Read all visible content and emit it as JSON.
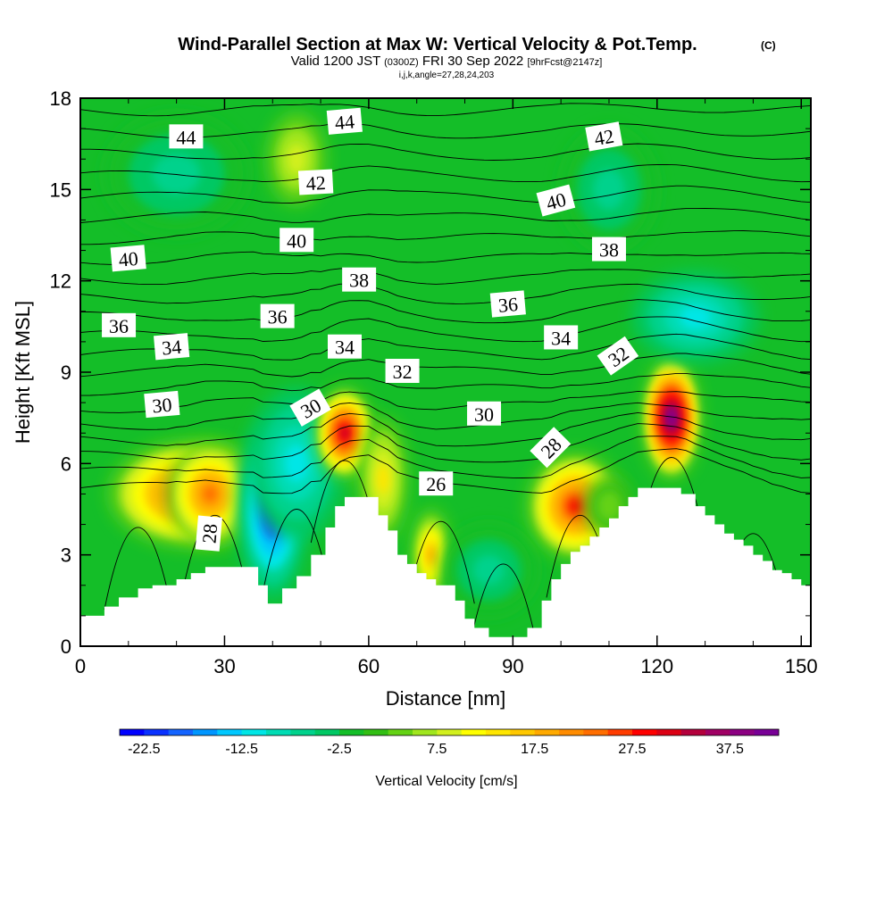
{
  "chart_data": {
    "type": "heatmap",
    "title": "Wind-Parallel Section at Max W: Vertical Velocity & Pot.Temp.",
    "title_suffix": "(C)",
    "subtitle_parts": {
      "valid": "Valid 1200 JST",
      "utc": "(0300Z)",
      "date": "FRI 30 Sep 2022",
      "forecast": "[9hrFcst@2147z]"
    },
    "subtitle2": "i,j,k,angle=27,28,24,203",
    "xlabel": "Distance [nm]",
    "ylabel": "Height [Kft MSL]",
    "xlim": [
      0,
      152
    ],
    "ylim": [
      0,
      18
    ],
    "x_ticks": [
      "0",
      "30",
      "60",
      "90",
      "120",
      "150"
    ],
    "y_ticks": [
      "0",
      "3",
      "6",
      "9",
      "12",
      "15",
      "18"
    ],
    "colorbar": {
      "label": "Vertical Velocity [cm/s]",
      "tick_labels": [
        "-22.5",
        "-12.5",
        "-2.5",
        "7.5",
        "17.5",
        "27.5",
        "37.5"
      ],
      "colors": [
        "#0000ff",
        "#0a32ff",
        "#1464ff",
        "#0096ff",
        "#00c8ff",
        "#00e6e6",
        "#00dcb4",
        "#00d28c",
        "#00c864",
        "#14be28",
        "#32be14",
        "#64d214",
        "#a0e61e",
        "#d2f01e",
        "#ffff00",
        "#ffe600",
        "#ffc800",
        "#ffaa00",
        "#ff8c00",
        "#ff6e00",
        "#ff3c00",
        "#ff0000",
        "#dc0014",
        "#b4003c",
        "#a00064",
        "#8c0082",
        "#780096"
      ]
    },
    "terrain": {
      "x": [
        0,
        3,
        5,
        8,
        12,
        15,
        20,
        23,
        26,
        30,
        35,
        37,
        39,
        42,
        45,
        48,
        51,
        53,
        55,
        57,
        60,
        62,
        64,
        66,
        68,
        70,
        72,
        74,
        76,
        78,
        80,
        82,
        85,
        88,
        90,
        93,
        96,
        98,
        100,
        102,
        104,
        106,
        108,
        110,
        112,
        114,
        116,
        118,
        120,
        122,
        125,
        128,
        130,
        132,
        134,
        136,
        138,
        140,
        142,
        144,
        146,
        148,
        150,
        152
      ],
      "y": [
        1.0,
        1.0,
        1.3,
        1.6,
        1.9,
        2.0,
        2.2,
        2.4,
        2.6,
        2.6,
        2.6,
        2.0,
        1.4,
        1.9,
        2.3,
        3.0,
        3.9,
        4.6,
        4.9,
        4.9,
        4.9,
        4.3,
        3.8,
        3.0,
        2.7,
        2.4,
        2.2,
        2.0,
        2.0,
        1.5,
        0.9,
        0.6,
        0.3,
        0.3,
        0.3,
        0.6,
        1.5,
        2.2,
        2.7,
        3.1,
        3.3,
        3.6,
        3.9,
        4.2,
        4.6,
        4.9,
        5.2,
        5.2,
        5.2,
        5.2,
        5.0,
        4.6,
        4.3,
        4.0,
        3.7,
        3.5,
        3.3,
        3.0,
        2.8,
        2.5,
        2.4,
        2.2,
        2.0,
        2.0
      ]
    },
    "w_features": [
      {
        "x": 23,
        "y": 5.0,
        "w": 34,
        "h": 3.5,
        "value": 27.5
      },
      {
        "x": 27,
        "y": 5.0,
        "w": 18,
        "h": 3.4,
        "value": 22.5
      },
      {
        "x": 40,
        "y": 4.5,
        "w": 15,
        "h": 6.0,
        "value": -22.5
      },
      {
        "x": 45,
        "y": 6.0,
        "w": 20,
        "h": 5.0,
        "value": -12.5
      },
      {
        "x": 55,
        "y": 7.0,
        "w": 12,
        "h": 3.0,
        "value": 32.5
      },
      {
        "x": 63,
        "y": 5.5,
        "w": 10,
        "h": 4.0,
        "value": 12.5
      },
      {
        "x": 73,
        "y": 3.0,
        "w": 8,
        "h": 3.0,
        "value": 17.5
      },
      {
        "x": 85,
        "y": 2.5,
        "w": 20,
        "h": 3.0,
        "value": -7.5
      },
      {
        "x": 103,
        "y": 4.6,
        "w": 20,
        "h": 3.5,
        "value": 27.5
      },
      {
        "x": 110,
        "y": 4.6,
        "w": 10,
        "h": 2.0,
        "value": 2.5
      },
      {
        "x": 123,
        "y": 7.5,
        "w": 12,
        "h": 4.0,
        "value": 42.5
      },
      {
        "x": 128,
        "y": 10.8,
        "w": 26,
        "h": 3.0,
        "value": -12.5
      },
      {
        "x": 20,
        "y": 15.5,
        "w": 30,
        "h": 4.0,
        "value": -7.5
      },
      {
        "x": 110,
        "y": 15.0,
        "w": 20,
        "h": 4.0,
        "value": -7.5
      },
      {
        "x": 45,
        "y": 16.0,
        "w": 12,
        "h": 3.0,
        "value": 7.5
      }
    ],
    "contour_labels": [
      {
        "text": "44",
        "x": 22,
        "y": 16.7,
        "angle": 0
      },
      {
        "text": "44",
        "x": 55,
        "y": 17.2,
        "angle": -5
      },
      {
        "text": "42",
        "x": 49,
        "y": 15.2,
        "angle": -3
      },
      {
        "text": "42",
        "x": 109,
        "y": 16.7,
        "angle": -10
      },
      {
        "text": "40",
        "x": 10,
        "y": 12.7,
        "angle": -5
      },
      {
        "text": "40",
        "x": 45,
        "y": 13.3,
        "angle": 0
      },
      {
        "text": "40",
        "x": 99,
        "y": 14.6,
        "angle": -15
      },
      {
        "text": "38",
        "x": 58,
        "y": 12.0,
        "angle": 0
      },
      {
        "text": "38",
        "x": 110,
        "y": 13.0,
        "angle": 0
      },
      {
        "text": "36",
        "x": 8,
        "y": 10.5,
        "angle": 0
      },
      {
        "text": "36",
        "x": 41,
        "y": 10.8,
        "angle": 0
      },
      {
        "text": "36",
        "x": 89,
        "y": 11.2,
        "angle": -5
      },
      {
        "text": "34",
        "x": 19,
        "y": 9.8,
        "angle": -5
      },
      {
        "text": "34",
        "x": 55,
        "y": 9.8,
        "angle": 0
      },
      {
        "text": "34",
        "x": 100,
        "y": 10.1,
        "angle": 0
      },
      {
        "text": "32",
        "x": 67,
        "y": 9.0,
        "angle": 0
      },
      {
        "text": "32",
        "x": 112,
        "y": 9.5,
        "angle": -35
      },
      {
        "text": "30",
        "x": 17,
        "y": 7.9,
        "angle": -5
      },
      {
        "text": "30",
        "x": 48,
        "y": 7.8,
        "angle": -30
      },
      {
        "text": "30",
        "x": 84,
        "y": 7.6,
        "angle": 0
      },
      {
        "text": "28",
        "x": 98,
        "y": 6.5,
        "angle": -45
      },
      {
        "text": "28",
        "x": 27,
        "y": 3.7,
        "angle": -85
      },
      {
        "text": "26",
        "x": 74,
        "y": 5.3,
        "angle": 0
      }
    ]
  }
}
